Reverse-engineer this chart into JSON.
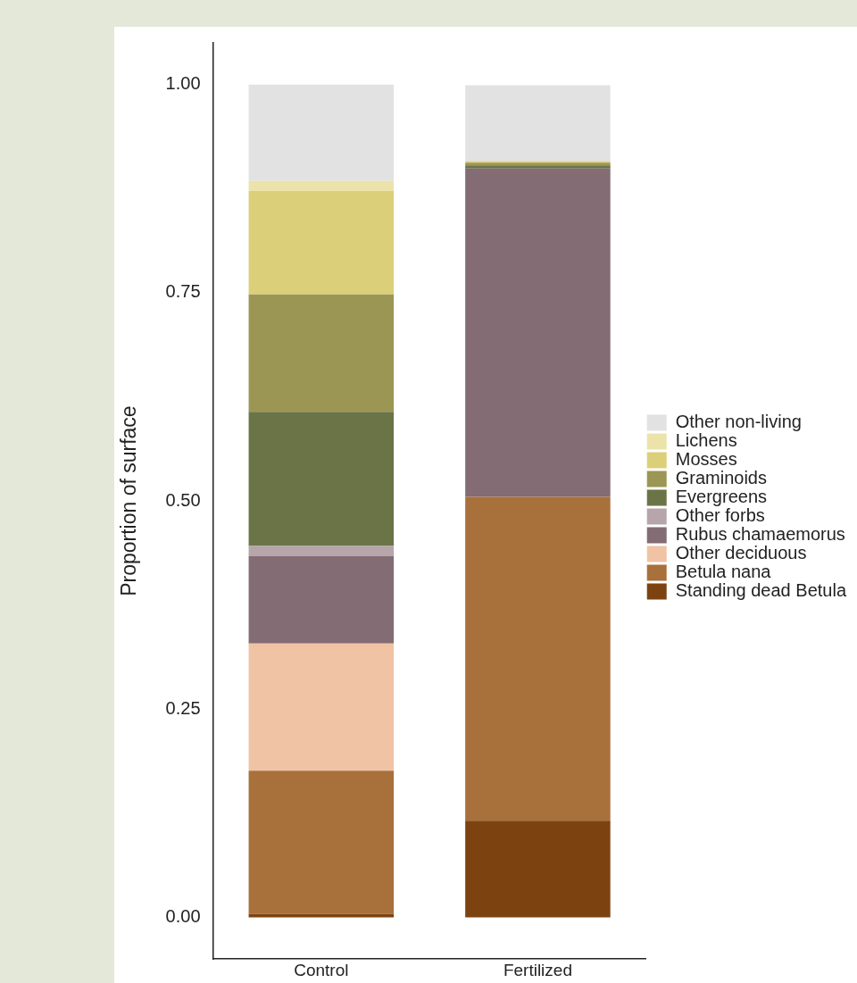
{
  "chart_data": {
    "type": "bar",
    "stacked": true,
    "ylabel": "Proportion of surface",
    "categories": [
      "Control",
      "Fertilized"
    ],
    "ylim": [
      -0.05,
      1.05
    ],
    "yticks": [
      {
        "value": 0,
        "label": "0.00"
      },
      {
        "value": 0.25,
        "label": "0.25"
      },
      {
        "value": 0.5,
        "label": "0.50"
      },
      {
        "value": 0.75,
        "label": "0.75"
      },
      {
        "value": 1,
        "label": "1.00"
      }
    ],
    "grid": false,
    "legend": "right",
    "series": [
      {
        "name": "Standing dead Betula",
        "color": "#7c4310",
        "values": [
          0.004,
          0.116
        ]
      },
      {
        "name": "Betula nana",
        "color": "#a8703b",
        "values": [
          0.172,
          0.389
        ]
      },
      {
        "name": "Other deciduous",
        "color": "#efc3a4",
        "values": [
          0.153,
          0
        ]
      },
      {
        "name": "Rubus chamaemorus",
        "color": "#836c74",
        "values": [
          0.105,
          0.394
        ]
      },
      {
        "name": "Other forbs",
        "color": "#b6a5aa",
        "values": [
          0.012,
          0
        ]
      },
      {
        "name": "Evergreens",
        "color": "#6b7446",
        "values": [
          0.161,
          0.004
        ]
      },
      {
        "name": "Graminoids",
        "color": "#9c9655",
        "values": [
          0.141,
          0.003
        ]
      },
      {
        "name": "Mosses",
        "color": "#dccf7a",
        "values": [
          0.124,
          0.002
        ]
      },
      {
        "name": "Lichens",
        "color": "#ebe3a9",
        "values": [
          0.012,
          0
        ]
      },
      {
        "name": "Other non-living",
        "color": "#e2e2e2",
        "values": [
          0.116,
          0.091
        ]
      }
    ]
  }
}
